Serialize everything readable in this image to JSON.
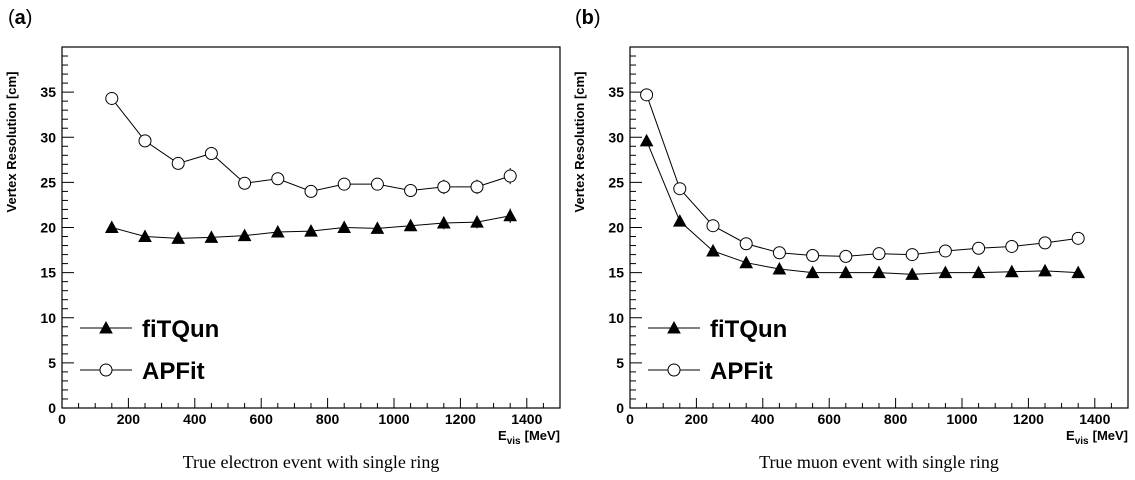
{
  "chart_data": [
    {
      "type": "line",
      "panel_label": "a",
      "xlabel_main": "E",
      "xlabel_sub": "vis",
      "xlabel_unit": "[MeV]",
      "ylabel": "Vertex Resolution [cm]",
      "xlim": [
        0,
        1500
      ],
      "ylim": [
        0,
        40
      ],
      "xticks": [
        0,
        200,
        400,
        600,
        800,
        1000,
        1200,
        1400
      ],
      "yticks": [
        0,
        5,
        10,
        15,
        20,
        25,
        30,
        35
      ],
      "legend_position": "bottom-left",
      "caption": "True electron event with single ring",
      "series": [
        {
          "name": "fiTQun",
          "marker": "filled-triangle",
          "x": [
            150,
            250,
            350,
            450,
            550,
            650,
            750,
            850,
            950,
            1050,
            1150,
            1250,
            1350
          ],
          "y": [
            20.0,
            19.0,
            18.8,
            18.9,
            19.1,
            19.5,
            19.6,
            20.0,
            19.9,
            20.2,
            20.5,
            20.6,
            21.3
          ],
          "err": [
            0.3,
            0.3,
            0.3,
            0.3,
            0.3,
            0.3,
            0.3,
            0.4,
            0.5,
            0.6,
            0.7,
            0.7,
            0.8
          ]
        },
        {
          "name": "APFit",
          "marker": "open-circle",
          "x": [
            150,
            250,
            350,
            450,
            550,
            650,
            750,
            850,
            950,
            1050,
            1150,
            1250,
            1350
          ],
          "y": [
            34.3,
            29.6,
            27.1,
            28.2,
            24.9,
            25.4,
            24.0,
            24.8,
            24.8,
            24.1,
            24.5,
            24.5,
            25.7
          ],
          "err": [
            0.3,
            0.3,
            0.3,
            0.3,
            0.3,
            0.3,
            0.3,
            0.4,
            0.5,
            0.6,
            0.8,
            0.8,
            0.9
          ]
        }
      ]
    },
    {
      "type": "line",
      "panel_label": "b",
      "xlabel_main": "E",
      "xlabel_sub": "vis",
      "xlabel_unit": "[MeV]",
      "ylabel": "Vertex Resolution [cm]",
      "xlim": [
        0,
        1500
      ],
      "ylim": [
        0,
        40
      ],
      "xticks": [
        0,
        200,
        400,
        600,
        800,
        1000,
        1200,
        1400
      ],
      "yticks": [
        0,
        5,
        10,
        15,
        20,
        25,
        30,
        35
      ],
      "legend_position": "bottom-left",
      "caption": "True muon event with single ring",
      "series": [
        {
          "name": "fiTQun",
          "marker": "filled-triangle",
          "x": [
            50,
            150,
            250,
            350,
            450,
            550,
            650,
            750,
            850,
            950,
            1050,
            1150,
            1250,
            1350
          ],
          "y": [
            29.6,
            20.7,
            17.4,
            16.1,
            15.4,
            15.0,
            15.0,
            15.0,
            14.8,
            15.0,
            15.0,
            15.1,
            15.2,
            15.0
          ],
          "err": [
            0.2,
            0.2,
            0.2,
            0.2,
            0.2,
            0.2,
            0.2,
            0.2,
            0.2,
            0.2,
            0.2,
            0.2,
            0.2,
            0.2
          ]
        },
        {
          "name": "APFit",
          "marker": "open-circle",
          "x": [
            50,
            150,
            250,
            350,
            450,
            550,
            650,
            750,
            850,
            950,
            1050,
            1150,
            1250,
            1350
          ],
          "y": [
            34.7,
            24.3,
            20.2,
            18.2,
            17.2,
            16.9,
            16.8,
            17.1,
            17.0,
            17.4,
            17.7,
            17.9,
            18.3,
            18.8
          ],
          "err": [
            0.2,
            0.2,
            0.2,
            0.2,
            0.2,
            0.2,
            0.2,
            0.2,
            0.2,
            0.2,
            0.2,
            0.2,
            0.2,
            0.2
          ]
        }
      ]
    }
  ]
}
